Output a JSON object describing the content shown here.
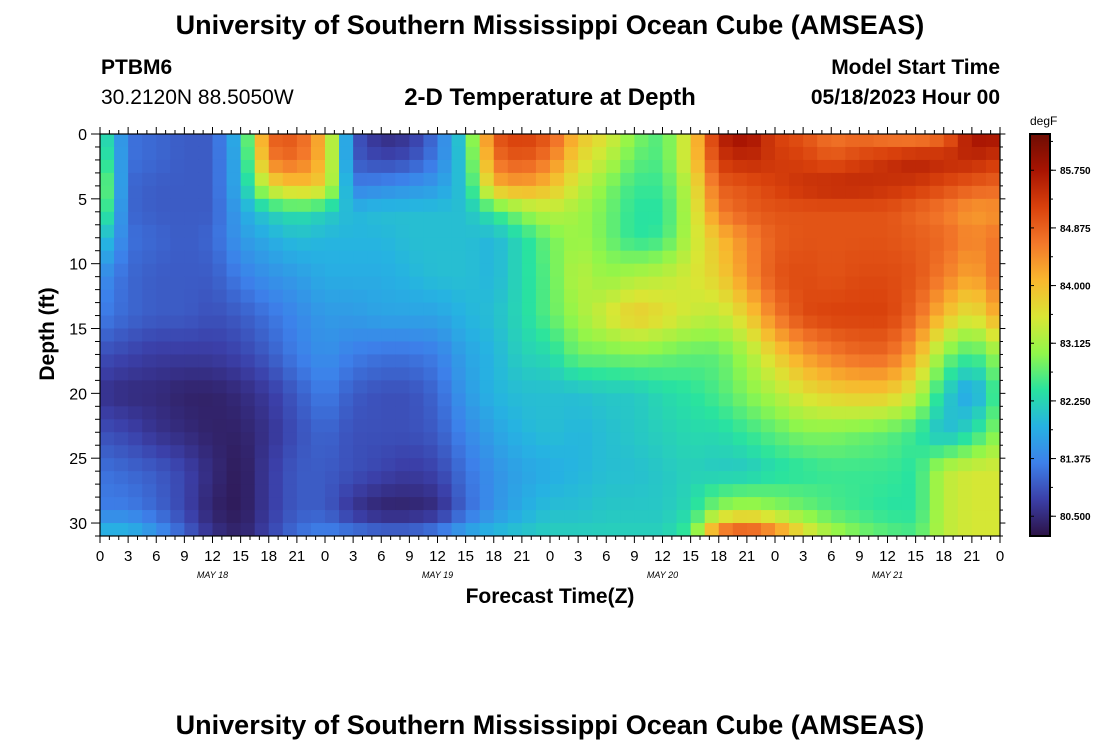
{
  "header": {
    "title": "University of Southern Mississippi Ocean Cube (AMSEAS)",
    "station": "PTBM6",
    "coords": "30.2120N  88.5050W",
    "plot_title": "2-D Temperature at Depth",
    "model_label": "Model Start Time",
    "model_value": "05/18/2023 Hour 00"
  },
  "footer": {
    "title": "University of Southern Mississippi Ocean Cube (AMSEAS)"
  },
  "chart_data": {
    "type": "heatmap",
    "title": "2-D Temperature at Depth",
    "xlabel": "Forecast Time(Z)",
    "ylabel": "Depth (ft)",
    "units": "degF",
    "x_hours": [
      0,
      96
    ],
    "y_range": [
      0,
      31
    ],
    "x_tick_labels": [
      "0",
      "3",
      "6",
      "9",
      "12",
      "15",
      "18",
      "21",
      "0",
      "3",
      "6",
      "9",
      "12",
      "15",
      "18",
      "21",
      "0",
      "3",
      "6",
      "9",
      "12",
      "15",
      "18",
      "21",
      "0",
      "3",
      "6",
      "9",
      "12",
      "15",
      "18",
      "21",
      "0"
    ],
    "date_labels": [
      "MAY 18",
      "MAY 19",
      "MAY 20",
      "MAY 21"
    ],
    "y_ticks": [
      0,
      5,
      10,
      15,
      20,
      25,
      30
    ],
    "colorbar": {
      "range": [
        80.2,
        86.3
      ],
      "tick_labels": [
        "85.750",
        "84.875",
        "84.000",
        "83.125",
        "82.250",
        "81.375",
        "80.500"
      ],
      "tick_values": [
        85.75,
        84.875,
        84.0,
        83.125,
        82.25,
        81.375,
        80.5
      ],
      "colors": [
        "#2c1245",
        "#3b3fa8",
        "#3d80ea",
        "#26b2e2",
        "#29e39f",
        "#91f64a",
        "#d9e634",
        "#f9b72e",
        "#f3782a",
        "#d9410c",
        "#a81402",
        "#6e0d03"
      ]
    },
    "grid_depths": [
      0,
      2,
      4,
      6,
      8,
      11,
      14,
      17,
      20,
      23,
      26,
      29,
      31
    ],
    "grid_hours": [
      0,
      3,
      6,
      9,
      12,
      15,
      18,
      21,
      24,
      27,
      30,
      33,
      36,
      39,
      42,
      45,
      48,
      51,
      54,
      57,
      60,
      63,
      66,
      69,
      72,
      75,
      78,
      81,
      84,
      87,
      90,
      93,
      96
    ],
    "grid": [
      [
        82.6,
        81.2,
        81.1,
        81.0,
        81.0,
        82.0,
        84.9,
        85.0,
        84.0,
        81.0,
        80.5,
        80.6,
        81.2,
        82.3,
        85.0,
        85.3,
        85.0,
        84.0,
        83.6,
        82.9,
        82.6,
        83.7,
        85.6,
        85.9,
        85.2,
        85.0,
        84.6,
        84.7,
        84.5,
        84.4,
        84.7,
        85.8,
        85.8
      ],
      [
        82.8,
        81.2,
        81.1,
        81.0,
        81.0,
        81.9,
        84.6,
        84.8,
        84.0,
        81.0,
        80.8,
        80.9,
        81.3,
        82.2,
        84.7,
        85.0,
        84.6,
        83.7,
        83.3,
        82.7,
        82.6,
        83.7,
        85.3,
        85.5,
        85.3,
        85.2,
        85.0,
        85.2,
        85.4,
        85.6,
        85.5,
        85.5,
        85.3
      ],
      [
        83.2,
        81.1,
        81.0,
        81.0,
        81.0,
        81.9,
        83.6,
        84.0,
        83.8,
        81.3,
        81.4,
        81.5,
        81.6,
        82.1,
        84.1,
        84.3,
        84.0,
        83.4,
        82.9,
        82.5,
        82.5,
        83.4,
        84.9,
        85.0,
        85.2,
        85.4,
        85.5,
        85.5,
        85.4,
        85.3,
        85.1,
        84.9,
        84.8
      ],
      [
        82.9,
        81.1,
        81.0,
        81.0,
        81.0,
        81.7,
        82.2,
        82.4,
        82.2,
        81.9,
        82.0,
        82.0,
        82.0,
        82.0,
        82.5,
        83.0,
        83.3,
        83.1,
        82.8,
        82.4,
        82.4,
        83.3,
        84.6,
        84.9,
        85.0,
        85.0,
        85.0,
        85.0,
        85.0,
        84.8,
        84.6,
        84.3,
        84.4
      ],
      [
        82.2,
        81.2,
        81.1,
        81.0,
        81.1,
        81.6,
        81.8,
        82.0,
        81.9,
        81.9,
        81.9,
        82.0,
        82.0,
        82.0,
        81.9,
        82.3,
        82.8,
        83.1,
        82.8,
        82.4,
        82.5,
        83.3,
        84.0,
        84.5,
        84.9,
        85.0,
        85.0,
        85.0,
        85.0,
        84.9,
        84.8,
        84.5,
        84.7
      ],
      [
        81.5,
        81.1,
        81.0,
        81.0,
        81.0,
        81.3,
        81.5,
        81.6,
        81.8,
        81.8,
        81.8,
        81.9,
        82.0,
        82.0,
        81.9,
        82.3,
        82.7,
        83.3,
        83.0,
        83.2,
        83.3,
        83.5,
        83.8,
        84.4,
        85.0,
        85.1,
        85.0,
        85.1,
        85.1,
        85.0,
        84.6,
        84.2,
        84.8
      ],
      [
        81.3,
        81.1,
        81.0,
        81.0,
        80.9,
        81.0,
        81.2,
        81.4,
        81.6,
        81.6,
        81.7,
        81.7,
        81.7,
        81.9,
        82.0,
        82.3,
        82.7,
        83.1,
        83.5,
        83.9,
        83.7,
        83.4,
        83.3,
        83.8,
        84.6,
        85.1,
        85.2,
        85.2,
        85.2,
        84.8,
        84.0,
        83.5,
        84.3
      ],
      [
        80.9,
        80.8,
        80.7,
        80.7,
        80.7,
        80.8,
        81.0,
        81.3,
        81.5,
        81.3,
        81.2,
        81.2,
        81.3,
        81.7,
        81.9,
        82.2,
        82.3,
        82.8,
        82.8,
        82.9,
        82.8,
        82.7,
        82.7,
        83.1,
        83.8,
        84.3,
        84.6,
        84.8,
        84.8,
        84.2,
        82.9,
        82.5,
        83.1
      ],
      [
        80.6,
        80.5,
        80.5,
        80.4,
        80.4,
        80.5,
        80.7,
        81.0,
        81.3,
        81.0,
        80.9,
        80.9,
        81.1,
        81.6,
        81.9,
        82.0,
        82.0,
        82.0,
        82.1,
        82.1,
        82.3,
        82.4,
        82.6,
        82.9,
        83.2,
        83.6,
        83.8,
        83.9,
        83.9,
        83.4,
        82.2,
        81.6,
        82.7
      ],
      [
        80.9,
        80.8,
        80.6,
        80.5,
        80.4,
        80.4,
        80.6,
        80.9,
        81.1,
        80.9,
        80.9,
        80.9,
        81.0,
        81.4,
        81.7,
        81.9,
        82.0,
        81.9,
        82.0,
        82.1,
        82.2,
        82.3,
        82.3,
        82.5,
        82.7,
        82.9,
        82.9,
        82.8,
        82.7,
        82.5,
        81.9,
        82.3,
        83.0
      ],
      [
        81.2,
        81.1,
        81.0,
        80.8,
        80.5,
        80.3,
        80.7,
        81.0,
        81.0,
        80.9,
        80.8,
        80.7,
        80.8,
        81.2,
        81.5,
        81.7,
        81.8,
        81.9,
        82.0,
        82.0,
        82.1,
        82.2,
        82.1,
        82.1,
        82.3,
        82.4,
        82.5,
        82.5,
        82.5,
        82.4,
        83.3,
        83.5,
        83.5
      ],
      [
        81.3,
        81.3,
        81.1,
        80.8,
        80.4,
        80.3,
        80.7,
        81.0,
        81.0,
        80.6,
        80.4,
        80.4,
        80.5,
        81.1,
        81.5,
        81.8,
        82.0,
        82.0,
        82.1,
        82.1,
        82.1,
        82.3,
        83.0,
        83.2,
        83.0,
        82.8,
        82.6,
        82.5,
        82.4,
        82.4,
        83.3,
        83.5,
        83.5
      ],
      [
        82.0,
        82.0,
        81.6,
        81.1,
        80.6,
        80.4,
        80.8,
        81.2,
        81.4,
        81.3,
        81.2,
        81.2,
        81.4,
        81.8,
        82.0,
        82.1,
        82.2,
        82.2,
        82.2,
        82.2,
        82.2,
        82.6,
        85.0,
        85.4,
        84.8,
        83.8,
        83.2,
        82.9,
        82.7,
        82.6,
        83.3,
        83.5,
        83.5
      ]
    ]
  }
}
